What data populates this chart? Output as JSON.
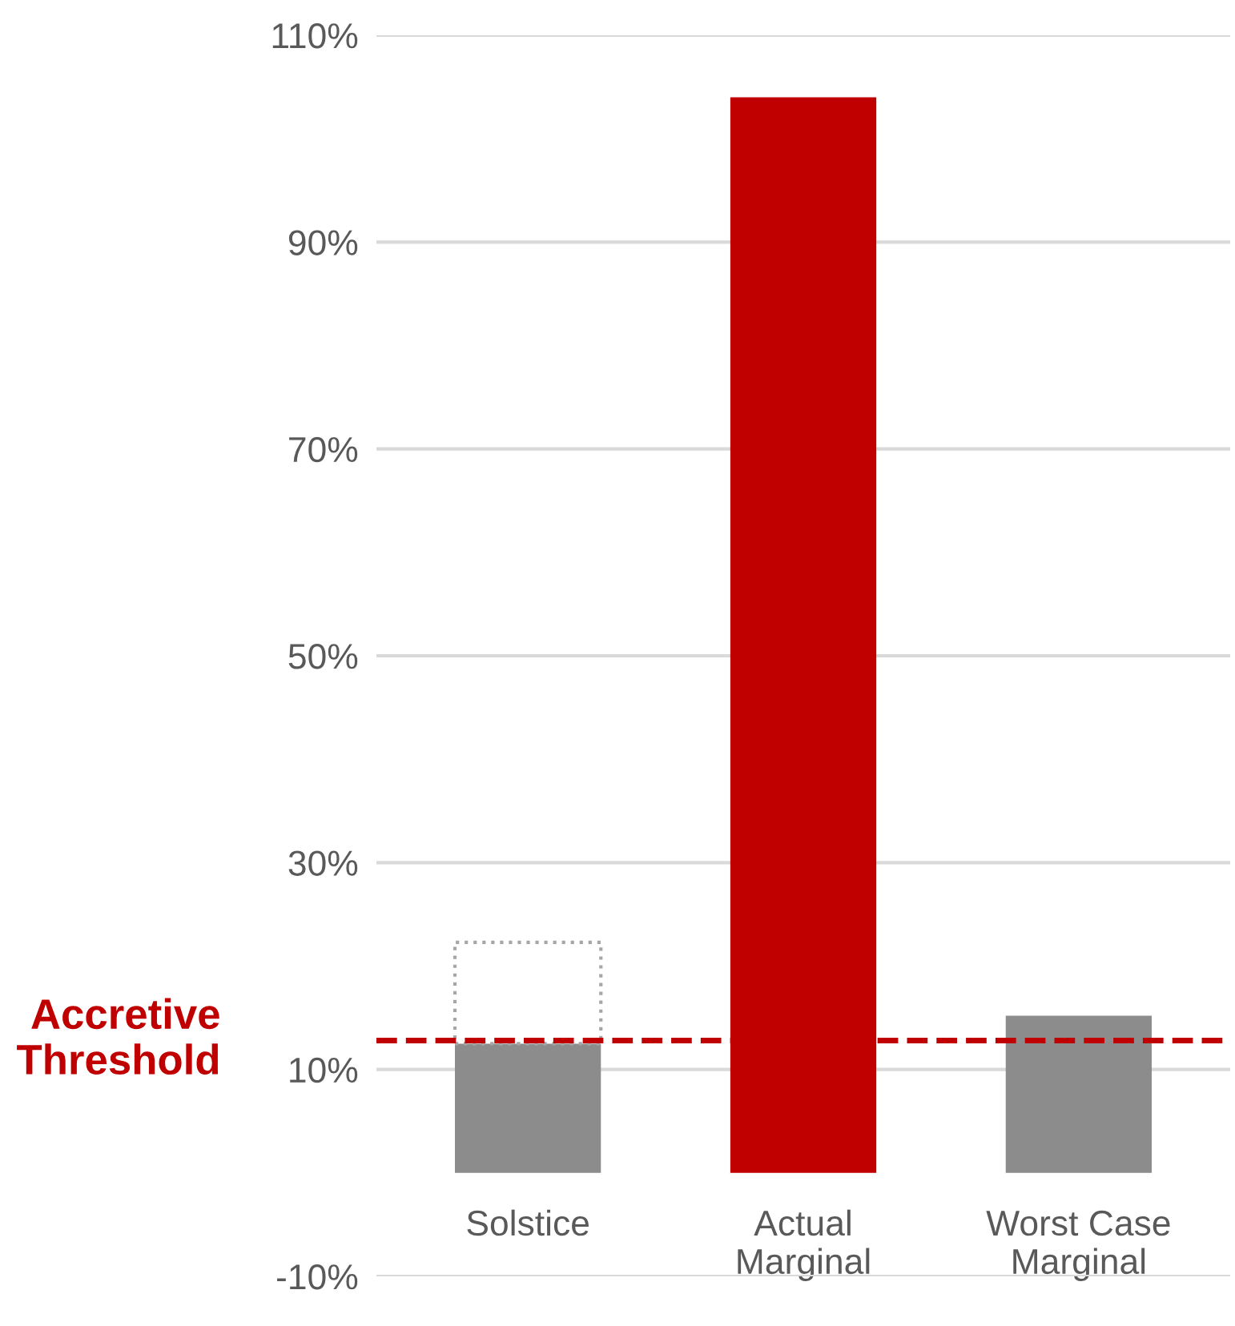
{
  "chart_data": {
    "type": "bar",
    "stacked": true,
    "categories": [
      "Solstice",
      "Actual\nMarginal",
      "Worst Case\nMarginal"
    ],
    "series": [
      {
        "colors": [
          "#8c8c8c",
          "#c00000",
          "#8c8c8c"
        ],
        "values": [
          12.5,
          104,
          15.2
        ]
      },
      {
        "color": "#a6a6a6",
        "line_style": "dotted",
        "values": [
          9.8,
          null,
          null
        ]
      }
    ],
    "ylim": [
      -10,
      110
    ],
    "yticks": [
      {
        "value": -10,
        "label": "-10%"
      },
      {
        "value": 10,
        "label": "10%"
      },
      {
        "value": 30,
        "label": "30%"
      },
      {
        "value": 50,
        "label": "50%"
      },
      {
        "value": 70,
        "label": "70%"
      },
      {
        "value": 90,
        "label": "90%"
      },
      {
        "value": 110,
        "label": "110%"
      }
    ],
    "grid": "y",
    "ref_lines": [
      {
        "axis": "y",
        "value": 12.8,
        "label": "Accretive\nThreshold",
        "color": "#c00000",
        "line_style": "dashed"
      }
    ]
  }
}
